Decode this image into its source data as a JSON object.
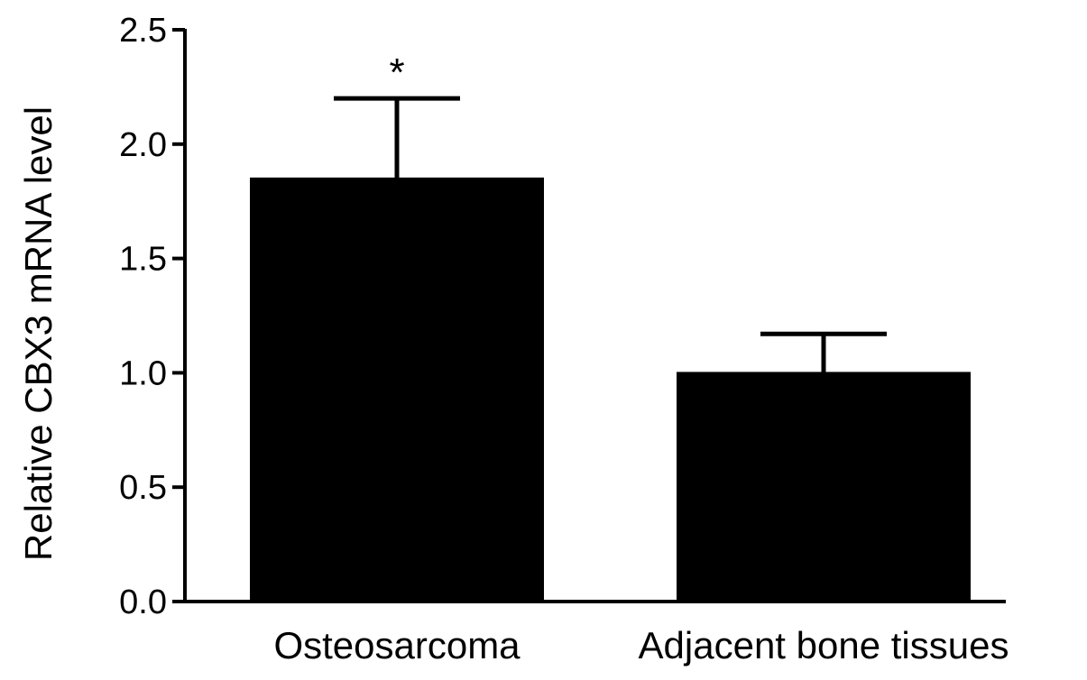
{
  "chart_data": {
    "type": "bar",
    "title": "",
    "xlabel": "",
    "ylabel": "Relative CBX3 mRNA level",
    "ylim": [
      0,
      2.5
    ],
    "yticks": [
      "0.0",
      "0.5",
      "1.0",
      "1.5",
      "2.0",
      "2.5"
    ],
    "categories": [
      "Osteosarcoma",
      "Adjacent bone tissues"
    ],
    "values": [
      1.85,
      1.0
    ],
    "errors": [
      0.35,
      0.17
    ],
    "annotations": [
      "*",
      ""
    ],
    "grid": false,
    "legend": "none",
    "bar_color": "#000000"
  }
}
